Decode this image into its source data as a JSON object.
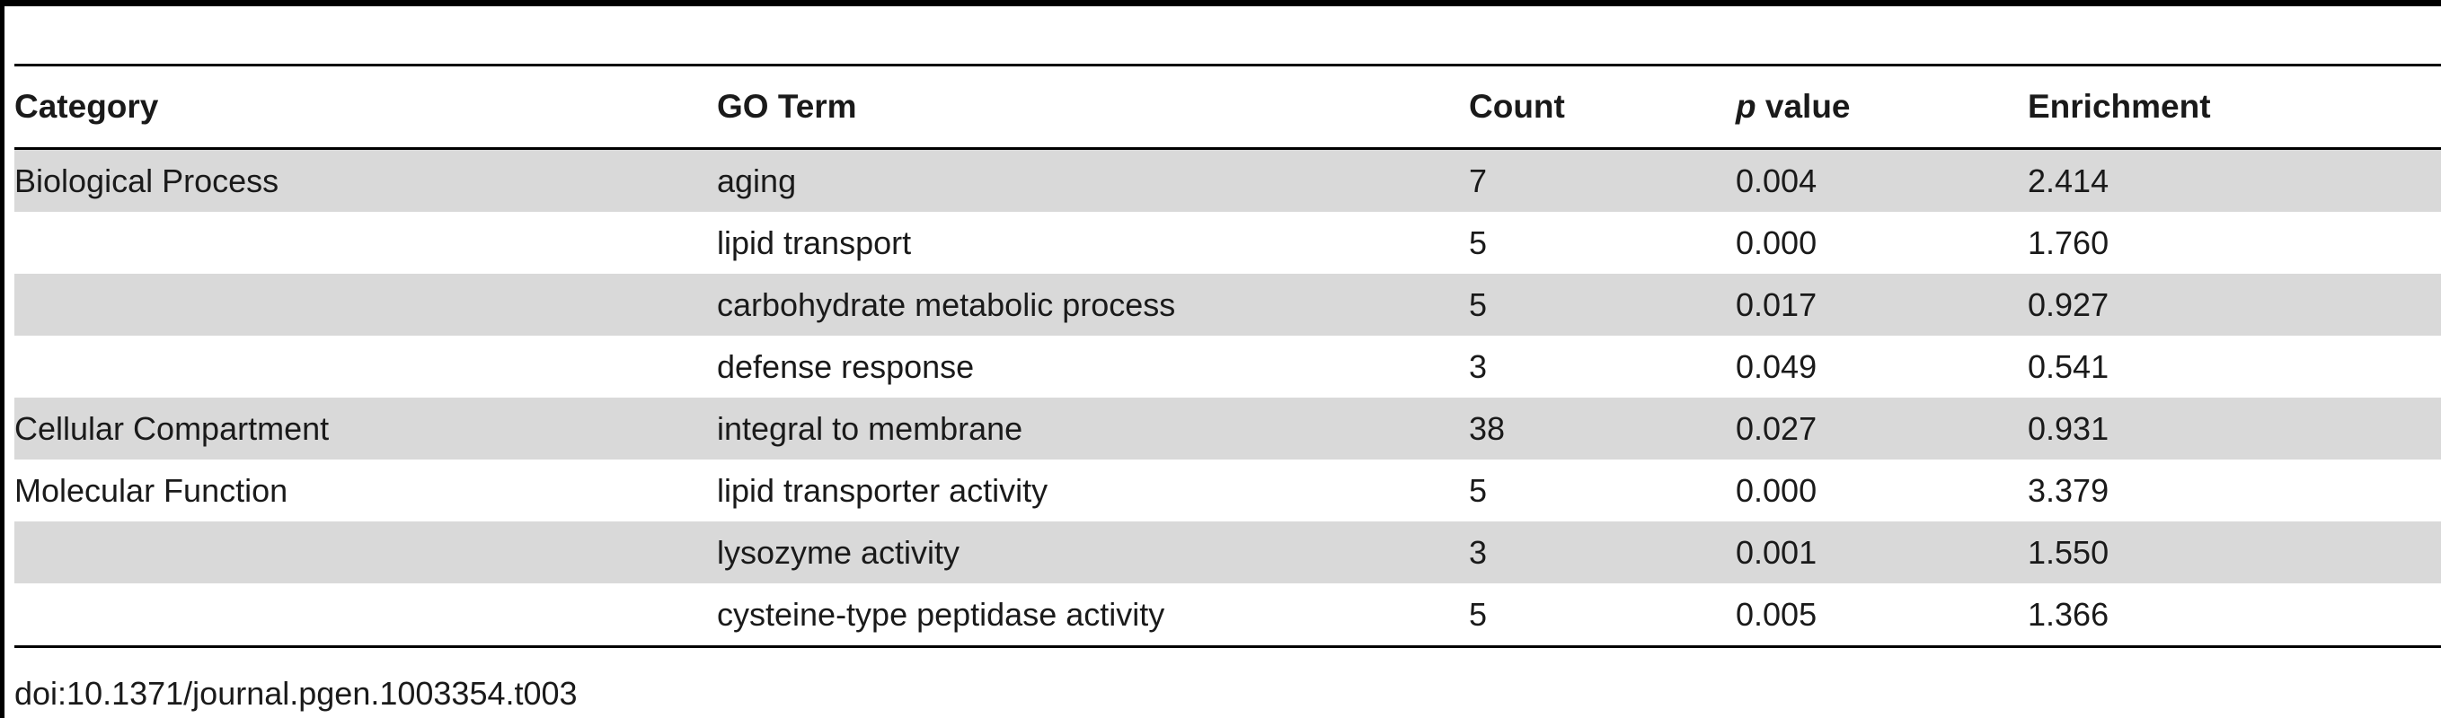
{
  "table": {
    "headers": {
      "category": "Category",
      "go_term": "GO Term",
      "count": "Count",
      "p_symbol": "p",
      "p_suffix": " value",
      "enrichment": "Enrichment"
    },
    "rows": [
      {
        "category": "Biological Process",
        "go_term": "aging",
        "count": "7",
        "p_value": "0.004",
        "enrichment": "2.414",
        "shaded": true
      },
      {
        "category": "",
        "go_term": "lipid transport",
        "count": "5",
        "p_value": "0.000",
        "enrichment": "1.760",
        "shaded": false
      },
      {
        "category": "",
        "go_term": "carbohydrate metabolic process",
        "count": "5",
        "p_value": "0.017",
        "enrichment": "0.927",
        "shaded": true
      },
      {
        "category": "",
        "go_term": "defense response",
        "count": "3",
        "p_value": "0.049",
        "enrichment": "0.541",
        "shaded": false
      },
      {
        "category": "Cellular Compartment",
        "go_term": "integral to membrane",
        "count": "38",
        "p_value": "0.027",
        "enrichment": "0.931",
        "shaded": true
      },
      {
        "category": "Molecular Function",
        "go_term": "lipid transporter activity",
        "count": "5",
        "p_value": "0.000",
        "enrichment": "3.379",
        "shaded": false
      },
      {
        "category": "",
        "go_term": "lysozyme activity",
        "count": "3",
        "p_value": "0.001",
        "enrichment": "1.550",
        "shaded": true
      },
      {
        "category": "",
        "go_term": "cysteine-type peptidase activity",
        "count": "5",
        "p_value": "0.005",
        "enrichment": "1.366",
        "shaded": false
      }
    ]
  },
  "caption": "doi:10.1371/journal.pgen.1003354.t003",
  "colors": {
    "shaded_row": "#d9d9d9",
    "rule": "#000000"
  }
}
